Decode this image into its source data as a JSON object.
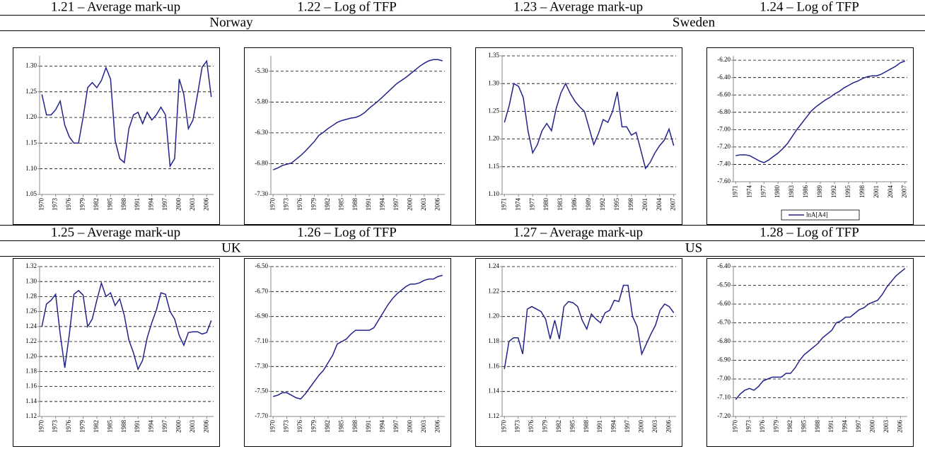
{
  "countries": [
    "Norway",
    "Sweden",
    "UK",
    "US"
  ],
  "chart_data": [
    {
      "type": "line",
      "title": "1.21 – Average mark-up",
      "color": "#22228a",
      "grid": true,
      "x": [
        1970,
        1971,
        1972,
        1973,
        1974,
        1975,
        1976,
        1977,
        1978,
        1979,
        1980,
        1981,
        1982,
        1983,
        1984,
        1985,
        1986,
        1987,
        1988,
        1989,
        1990,
        1991,
        1992,
        1993,
        1994,
        1995,
        1996,
        1997,
        1998,
        1999,
        2000,
        2001,
        2002,
        2003,
        2004,
        2005,
        2006,
        2007
      ],
      "values": [
        1.245,
        1.205,
        1.205,
        1.215,
        1.232,
        1.185,
        1.162,
        1.15,
        1.15,
        1.2,
        1.258,
        1.268,
        1.258,
        1.272,
        1.297,
        1.275,
        1.155,
        1.12,
        1.112,
        1.178,
        1.205,
        1.21,
        1.188,
        1.21,
        1.195,
        1.205,
        1.22,
        1.205,
        1.105,
        1.12,
        1.275,
        1.245,
        1.178,
        1.195,
        1.245,
        1.298,
        1.31,
        1.24
      ],
      "xlim": [
        1969.5,
        2007.5
      ],
      "xticks": [
        1970,
        1973,
        1976,
        1979,
        1982,
        1985,
        1988,
        1991,
        1994,
        1997,
        2000,
        2003,
        2006
      ],
      "ylim": [
        1.05,
        1.32
      ],
      "yticks": [
        1.05,
        {
          "value": 1.1,
          "label": "1.10"
        },
        1.15,
        {
          "value": 1.2,
          "label": "1.20"
        },
        1.25,
        {
          "value": 1.3,
          "label": "1.30"
        }
      ]
    },
    {
      "type": "line",
      "title": "1.22 – Log of TFP",
      "color": "#22228a",
      "grid": true,
      "x": [
        1970,
        1971,
        1972,
        1973,
        1974,
        1975,
        1976,
        1977,
        1978,
        1979,
        1980,
        1981,
        1982,
        1983,
        1984,
        1985,
        1986,
        1987,
        1988,
        1989,
        1990,
        1991,
        1992,
        1993,
        1994,
        1995,
        1996,
        1997,
        1998,
        1999,
        2000,
        2001,
        2002,
        2003,
        2004,
        2005,
        2006,
        2007
      ],
      "values": [
        -6.9,
        -6.87,
        -6.83,
        -6.81,
        -6.79,
        -6.73,
        -6.67,
        -6.6,
        -6.52,
        -6.44,
        -6.34,
        -6.29,
        -6.23,
        -6.18,
        -6.13,
        -6.1,
        -6.08,
        -6.06,
        -6.05,
        -6.02,
        -5.97,
        -5.9,
        -5.84,
        -5.78,
        -5.71,
        -5.64,
        -5.57,
        -5.5,
        -5.45,
        -5.4,
        -5.34,
        -5.28,
        -5.22,
        -5.17,
        -5.13,
        -5.11,
        -5.11,
        -5.13
      ],
      "xlim": [
        1969.5,
        2007.5
      ],
      "xticks": [
        1970,
        1973,
        1976,
        1979,
        1982,
        1985,
        1988,
        1991,
        1994,
        1997,
        2000,
        2003,
        2006
      ],
      "ylim": [
        -7.3,
        -5.05
      ],
      "yticks": [
        {
          "value": -7.3,
          "label": "-7.30"
        },
        {
          "value": -6.8,
          "label": "-6.80"
        },
        {
          "value": -6.3,
          "label": "-6.30"
        },
        {
          "value": -5.8,
          "label": "-5.80"
        },
        {
          "value": -5.3,
          "label": "-5.30"
        }
      ]
    },
    {
      "type": "line",
      "title": "1.23 – Average mark-up",
      "color": "#22228a",
      "grid": true,
      "x": [
        1971,
        1972,
        1973,
        1974,
        1975,
        1976,
        1977,
        1978,
        1979,
        1980,
        1981,
        1982,
        1983,
        1984,
        1985,
        1986,
        1987,
        1988,
        1989,
        1990,
        1991,
        1992,
        1993,
        1994,
        1995,
        1996,
        1997,
        1998,
        1999,
        2000,
        2001,
        2002,
        2003,
        2004,
        2005,
        2006,
        2007
      ],
      "values": [
        1.23,
        1.26,
        1.3,
        1.295,
        1.275,
        1.215,
        1.175,
        1.19,
        1.215,
        1.228,
        1.215,
        1.255,
        1.283,
        1.3,
        1.282,
        1.268,
        1.258,
        1.25,
        1.22,
        1.19,
        1.21,
        1.235,
        1.23,
        1.25,
        1.285,
        1.222,
        1.222,
        1.207,
        1.212,
        1.18,
        1.147,
        1.158,
        1.175,
        1.188,
        1.198,
        1.218,
        1.188
      ],
      "xlim": [
        1970.5,
        2007.5
      ],
      "xticks": [
        1971,
        1974,
        1977,
        1980,
        1983,
        1986,
        1989,
        1992,
        1995,
        1998,
        2001,
        2004,
        2007
      ],
      "ylim": [
        1.1,
        1.35
      ],
      "yticks": [
        {
          "value": 1.1,
          "label": "1.10"
        },
        1.15,
        {
          "value": 1.2,
          "label": "1.20"
        },
        1.25,
        {
          "value": 1.3,
          "label": "1.30"
        },
        1.35
      ]
    },
    {
      "type": "line",
      "title": "1.24 – Log of TFP",
      "grid": true,
      "legend": "bottom",
      "x": [
        1971,
        1972,
        1973,
        1974,
        1975,
        1976,
        1977,
        1978,
        1979,
        1980,
        1981,
        1982,
        1983,
        1984,
        1985,
        1986,
        1987,
        1988,
        1989,
        1990,
        1991,
        1992,
        1993,
        1994,
        1995,
        1996,
        1997,
        1998,
        1999,
        2000,
        2001,
        2002,
        2003,
        2004,
        2005,
        2006,
        2007
      ],
      "series": [
        {
          "name": "lnA[A4]",
          "color": "#22228a",
          "values": [
            -7.3,
            -7.29,
            -7.29,
            -7.3,
            -7.33,
            -7.36,
            -7.38,
            -7.35,
            -7.31,
            -7.27,
            -7.22,
            -7.16,
            -7.08,
            -7.0,
            -6.93,
            -6.86,
            -6.79,
            -6.74,
            -6.7,
            -6.66,
            -6.63,
            -6.59,
            -6.56,
            -6.52,
            -6.49,
            -6.46,
            -6.44,
            -6.41,
            -6.39,
            -6.38,
            -6.38,
            -6.36,
            -6.33,
            -6.3,
            -6.27,
            -6.23,
            -6.21
          ]
        }
      ],
      "xlim": [
        1970.5,
        2007.5
      ],
      "xticks": [
        1971,
        1974,
        1977,
        1980,
        1983,
        1986,
        1989,
        1992,
        1995,
        1998,
        2001,
        2004,
        2007
      ],
      "ylim": [
        -7.6,
        -6.15
      ],
      "yticks": [
        {
          "value": -7.6,
          "label": "-7.60"
        },
        {
          "value": -7.4,
          "label": "-7.40"
        },
        {
          "value": -7.2,
          "label": "-7.20"
        },
        {
          "value": -7.0,
          "label": "-7.00"
        },
        {
          "value": -6.8,
          "label": "-6.80"
        },
        {
          "value": -6.6,
          "label": "-6.60"
        },
        {
          "value": -6.4,
          "label": "-6.40"
        },
        {
          "value": -6.2,
          "label": "-6.20"
        }
      ]
    },
    {
      "type": "line",
      "title": "1.25 – Average mark-up",
      "color": "#22228a",
      "grid": true,
      "x": [
        1970,
        1971,
        1972,
        1973,
        1974,
        1975,
        1976,
        1977,
        1978,
        1979,
        1980,
        1981,
        1982,
        1983,
        1984,
        1985,
        1986,
        1987,
        1988,
        1989,
        1990,
        1991,
        1992,
        1993,
        1994,
        1995,
        1996,
        1997,
        1998,
        1999,
        2000,
        2001,
        2002,
        2003,
        2004,
        2005,
        2006,
        2007
      ],
      "values": [
        1.24,
        1.27,
        1.275,
        1.283,
        1.23,
        1.185,
        1.23,
        1.283,
        1.288,
        1.282,
        1.24,
        1.25,
        1.275,
        1.298,
        1.28,
        1.285,
        1.268,
        1.277,
        1.255,
        1.222,
        1.205,
        1.183,
        1.195,
        1.225,
        1.245,
        1.262,
        1.285,
        1.283,
        1.26,
        1.25,
        1.228,
        1.215,
        1.232,
        1.233,
        1.233,
        1.23,
        1.232,
        1.248
      ],
      "xlim": [
        1969.5,
        2007.5
      ],
      "xticks": [
        1970,
        1973,
        1976,
        1979,
        1982,
        1985,
        1988,
        1991,
        1994,
        1997,
        2000,
        2003,
        2006
      ],
      "ylim": [
        1.12,
        1.32
      ],
      "yticks": [
        1.12,
        1.14,
        1.16,
        1.18,
        {
          "value": 1.2,
          "label": "1.20"
        },
        1.22,
        1.24,
        1.26,
        1.28,
        {
          "value": 1.3,
          "label": "1.30"
        },
        1.32
      ]
    },
    {
      "type": "line",
      "title": "1.26 – Log of TFP",
      "color": "#22228a",
      "grid": true,
      "x": [
        1970,
        1971,
        1972,
        1973,
        1974,
        1975,
        1976,
        1977,
        1978,
        1979,
        1980,
        1981,
        1982,
        1983,
        1984,
        1985,
        1986,
        1987,
        1988,
        1989,
        1990,
        1991,
        1992,
        1993,
        1994,
        1995,
        1996,
        1997,
        1998,
        1999,
        2000,
        2001,
        2002,
        2003,
        2004,
        2005,
        2006,
        2007
      ],
      "values": [
        -7.54,
        -7.53,
        -7.51,
        -7.51,
        -7.53,
        -7.55,
        -7.56,
        -7.52,
        -7.47,
        -7.42,
        -7.37,
        -7.33,
        -7.27,
        -7.21,
        -7.12,
        -7.1,
        -7.08,
        -7.04,
        -7.01,
        -7.01,
        -7.01,
        -7.01,
        -6.99,
        -6.93,
        -6.87,
        -6.81,
        -6.76,
        -6.72,
        -6.69,
        -6.66,
        -6.64,
        -6.64,
        -6.63,
        -6.61,
        -6.6,
        -6.6,
        -6.58,
        -6.57
      ],
      "xlim": [
        1969.5,
        2007.5
      ],
      "xticks": [
        1970,
        1973,
        1976,
        1979,
        1982,
        1985,
        1988,
        1991,
        1994,
        1997,
        2000,
        2003,
        2006
      ],
      "ylim": [
        -7.7,
        -6.5
      ],
      "yticks": [
        {
          "value": -7.7,
          "label": "-7.70"
        },
        {
          "value": -7.5,
          "label": "-7.50"
        },
        {
          "value": -7.3,
          "label": "-7.30"
        },
        {
          "value": -7.1,
          "label": "-7.10"
        },
        {
          "value": -6.9,
          "label": "-6.90"
        },
        {
          "value": -6.7,
          "label": "-6.70"
        },
        {
          "value": -6.5,
          "label": "-6.50"
        }
      ]
    },
    {
      "type": "line",
      "title": "1.27 – Average mark-up",
      "color": "#22228a",
      "grid": true,
      "x": [
        1970,
        1971,
        1972,
        1973,
        1974,
        1975,
        1976,
        1977,
        1978,
        1979,
        1980,
        1981,
        1982,
        1983,
        1984,
        1985,
        1986,
        1987,
        1988,
        1989,
        1990,
        1991,
        1992,
        1993,
        1994,
        1995,
        1996,
        1997,
        1998,
        1999,
        2000,
        2001,
        2002,
        2003,
        2004,
        2005,
        2006,
        2007
      ],
      "values": [
        1.158,
        1.18,
        1.183,
        1.183,
        1.17,
        1.206,
        1.208,
        1.206,
        1.204,
        1.198,
        1.182,
        1.197,
        1.182,
        1.208,
        1.212,
        1.211,
        1.208,
        1.197,
        1.19,
        1.202,
        1.198,
        1.195,
        1.203,
        1.205,
        1.213,
        1.212,
        1.225,
        1.225,
        1.2,
        1.192,
        1.17,
        1.178,
        1.186,
        1.193,
        1.205,
        1.21,
        1.208,
        1.203
      ],
      "xlim": [
        1969.5,
        2007.5
      ],
      "xticks": [
        1970,
        1973,
        1976,
        1979,
        1982,
        1985,
        1988,
        1991,
        1994,
        1997,
        2000,
        2003,
        2006
      ],
      "ylim": [
        1.12,
        1.24
      ],
      "yticks": [
        1.12,
        1.14,
        1.16,
        1.18,
        {
          "value": 1.2,
          "label": "1.20"
        },
        1.22,
        1.24
      ]
    },
    {
      "type": "line",
      "title": "1.28 – Log of TFP",
      "color": "#22228a",
      "grid": true,
      "x": [
        1970,
        1971,
        1972,
        1973,
        1974,
        1975,
        1976,
        1977,
        1978,
        1979,
        1980,
        1981,
        1982,
        1983,
        1984,
        1985,
        1986,
        1987,
        1988,
        1989,
        1990,
        1991,
        1992,
        1993,
        1994,
        1995,
        1996,
        1997,
        1998,
        1999,
        2000,
        2001,
        2002,
        2003,
        2004,
        2005,
        2006,
        2007
      ],
      "values": [
        -7.11,
        -7.08,
        -7.06,
        -7.05,
        -7.06,
        -7.04,
        -7.01,
        -7.0,
        -6.99,
        -6.99,
        -6.99,
        -6.97,
        -6.97,
        -6.94,
        -6.9,
        -6.87,
        -6.85,
        -6.83,
        -6.81,
        -6.78,
        -6.76,
        -6.74,
        -6.7,
        -6.69,
        -6.67,
        -6.67,
        -6.65,
        -6.63,
        -6.62,
        -6.6,
        -6.59,
        -6.58,
        -6.55,
        -6.51,
        -6.48,
        -6.45,
        -6.43,
        -6.41
      ],
      "xlim": [
        1969.5,
        2007.5
      ],
      "xticks": [
        1970,
        1973,
        1976,
        1979,
        1982,
        1985,
        1988,
        1991,
        1994,
        1997,
        2000,
        2003,
        2006
      ],
      "ylim": [
        -7.2,
        -6.4
      ],
      "yticks": [
        {
          "value": -7.2,
          "label": "-7.20"
        },
        {
          "value": -7.1,
          "label": "-7.10"
        },
        {
          "value": -7.0,
          "label": "-7.00"
        },
        {
          "value": -6.9,
          "label": "-6.90"
        },
        {
          "value": -6.8,
          "label": "-6.80"
        },
        {
          "value": -6.7,
          "label": "-6.70"
        },
        {
          "value": -6.6,
          "label": "-6.60"
        },
        {
          "value": -6.5,
          "label": "-6.50"
        },
        {
          "value": -6.4,
          "label": "-6.40"
        }
      ]
    }
  ]
}
